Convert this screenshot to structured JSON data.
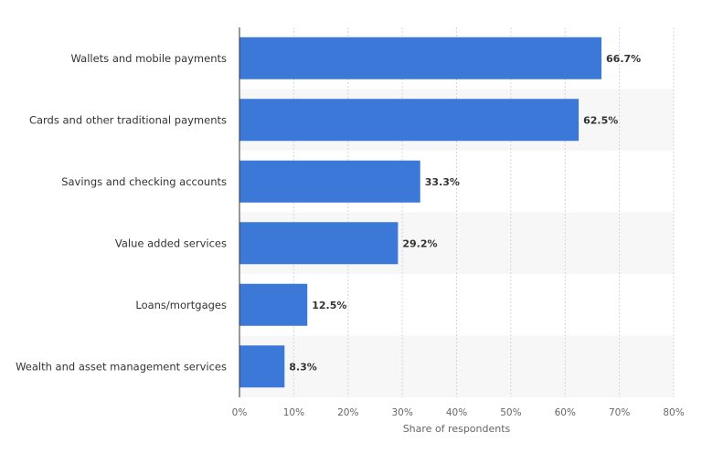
{
  "chart_data": {
    "type": "bar",
    "orientation": "horizontal",
    "categories": [
      "Wallets and mobile payments",
      "Cards and other traditional payments",
      "Savings and checking accounts",
      "Value added services",
      "Loans/mortgages",
      "Wealth and asset management services"
    ],
    "values": [
      66.7,
      62.5,
      33.3,
      29.2,
      12.5,
      8.3
    ],
    "value_labels": [
      "66.7%",
      "62.5%",
      "33.3%",
      "29.2%",
      "12.5%",
      "8.3%"
    ],
    "xlabel": "Share of respondents",
    "xlim": [
      0,
      80
    ],
    "ticks": [
      0,
      10,
      20,
      30,
      40,
      50,
      60,
      70,
      80
    ],
    "tick_labels": [
      "0%",
      "10%",
      "20%",
      "30%",
      "40%",
      "50%",
      "60%",
      "70%",
      "80%"
    ],
    "grid": true,
    "colors": {
      "bar": "#3b78d8",
      "band": "#f7f7f7",
      "grid": "#d6d6d6",
      "axis": "#333333"
    }
  }
}
